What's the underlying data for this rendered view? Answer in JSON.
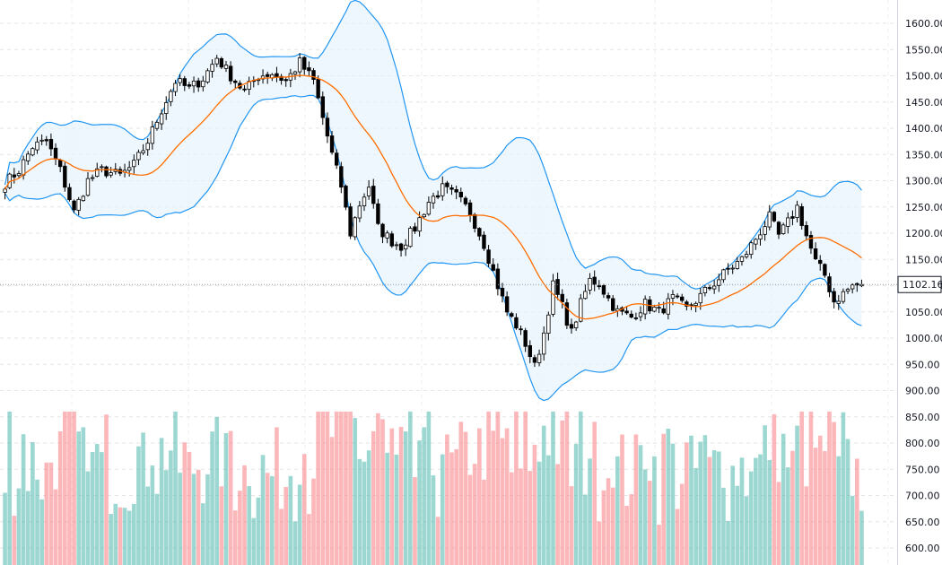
{
  "chart_data": {
    "type": "candlestick",
    "overlays": [
      "bollinger-bands",
      "moving-average"
    ],
    "y_axis": {
      "position": "right",
      "ticks": [
        "1600.00",
        "1550.00",
        "1500.00",
        "1450.00",
        "1400.00",
        "1350.00",
        "1300.00",
        "1250.00",
        "1200.00",
        "1150.00",
        "1100.00",
        "1050.00",
        "1000.00",
        "950.00",
        "900.00",
        "850.00",
        "800.00",
        "750.00",
        "700.00",
        "650.00",
        "600.00"
      ],
      "tick_values": [
        1600,
        1550,
        1500,
        1450,
        1400,
        1350,
        1300,
        1250,
        1200,
        1150,
        1100,
        1050,
        1000,
        950,
        900,
        850,
        800,
        750,
        700,
        650,
        600
      ],
      "range": [
        585,
        1620
      ]
    },
    "last_price": {
      "value": 1102.16,
      "label": "1102.16"
    },
    "colors": {
      "up_candle_fill": "#ffffff",
      "down_candle_fill": "#000000",
      "candle_outline": "#000000",
      "band_line": "#2196f3",
      "band_fill": "#e3f2fd",
      "moving_average": "#ff6d00",
      "volume_up": "#4db6ac",
      "volume_down": "#f77c80"
    },
    "anchors": [
      [
        0,
        1295
      ],
      [
        3,
        1320
      ],
      [
        6,
        1365
      ],
      [
        9,
        1375
      ],
      [
        12,
        1320
      ],
      [
        15,
        1240
      ],
      [
        18,
        1300
      ],
      [
        21,
        1320
      ],
      [
        25,
        1310
      ],
      [
        28,
        1330
      ],
      [
        31,
        1375
      ],
      [
        34,
        1435
      ],
      [
        37,
        1490
      ],
      [
        40,
        1475
      ],
      [
        43,
        1495
      ],
      [
        46,
        1535
      ],
      [
        49,
        1500
      ],
      [
        52,
        1470
      ],
      [
        55,
        1500
      ],
      [
        58,
        1505
      ],
      [
        61,
        1490
      ],
      [
        64,
        1525
      ],
      [
        67,
        1490
      ],
      [
        69,
        1420
      ],
      [
        71,
        1350
      ],
      [
        73,
        1290
      ],
      [
        75,
        1200
      ],
      [
        77,
        1255
      ],
      [
        79,
        1290
      ],
      [
        81,
        1210
      ],
      [
        84,
        1185
      ],
      [
        86,
        1175
      ],
      [
        89,
        1210
      ],
      [
        92,
        1260
      ],
      [
        95,
        1285
      ],
      [
        98,
        1270
      ],
      [
        101,
        1240
      ],
      [
        104,
        1180
      ],
      [
        107,
        1100
      ],
      [
        109,
        1050
      ],
      [
        111,
        1025
      ],
      [
        113,
        990
      ],
      [
        115,
        945
      ],
      [
        117,
        1010
      ],
      [
        119,
        1100
      ],
      [
        121,
        1060
      ],
      [
        123,
        1010
      ],
      [
        125,
        1065
      ],
      [
        127,
        1110
      ],
      [
        129,
        1105
      ],
      [
        131,
        1075
      ],
      [
        133,
        1050
      ],
      [
        136,
        1040
      ],
      [
        139,
        1065
      ],
      [
        142,
        1050
      ],
      [
        145,
        1075
      ],
      [
        148,
        1055
      ],
      [
        151,
        1080
      ],
      [
        154,
        1105
      ],
      [
        157,
        1130
      ],
      [
        160,
        1150
      ],
      [
        163,
        1190
      ],
      [
        166,
        1230
      ],
      [
        168,
        1195
      ],
      [
        170,
        1220
      ],
      [
        172,
        1250
      ],
      [
        174,
        1195
      ],
      [
        176,
        1145
      ],
      [
        178,
        1120
      ],
      [
        180,
        1070
      ],
      [
        182,
        1085
      ],
      [
        184,
        1100
      ],
      [
        186,
        1102
      ]
    ],
    "candle_count": 187,
    "volume_pane": {
      "range": [
        585,
        860
      ]
    }
  }
}
